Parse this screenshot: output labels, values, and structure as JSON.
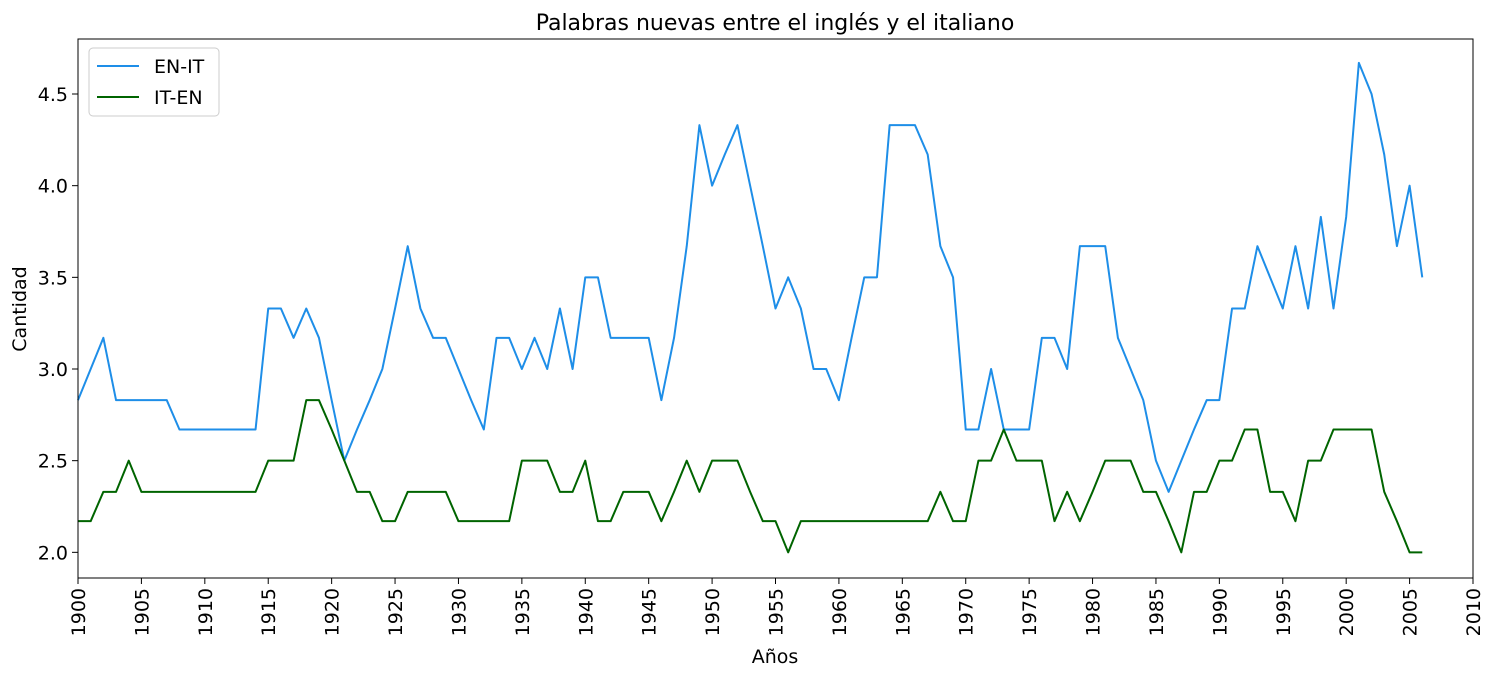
{
  "chart_data": {
    "type": "line",
    "title": "Palabras nuevas entre el inglés y el italiano",
    "xlabel": "Años",
    "ylabel": "Cantidad",
    "xlim": [
      1900,
      2010
    ],
    "ylim": [
      1.86,
      4.8
    ],
    "x_ticks": [
      1900,
      1905,
      1910,
      1915,
      1920,
      1925,
      1930,
      1935,
      1940,
      1945,
      1950,
      1955,
      1960,
      1965,
      1970,
      1975,
      1980,
      1985,
      1990,
      1995,
      2000,
      2005,
      2010
    ],
    "y_ticks": [
      2.0,
      2.5,
      3.0,
      3.5,
      4.0,
      4.5
    ],
    "y_tick_labels": [
      "2.0",
      "2.5",
      "3.0",
      "3.5",
      "4.0",
      "4.5"
    ],
    "grid": false,
    "legend_position": "top-left",
    "x": [
      1900,
      1901,
      1902,
      1903,
      1904,
      1905,
      1906,
      1907,
      1908,
      1909,
      1910,
      1911,
      1912,
      1913,
      1914,
      1915,
      1916,
      1917,
      1918,
      1919,
      1920,
      1921,
      1922,
      1923,
      1924,
      1925,
      1926,
      1927,
      1928,
      1929,
      1930,
      1931,
      1932,
      1933,
      1934,
      1935,
      1936,
      1937,
      1938,
      1939,
      1940,
      1941,
      1942,
      1943,
      1944,
      1945,
      1946,
      1947,
      1948,
      1949,
      1950,
      1951,
      1952,
      1953,
      1954,
      1955,
      1956,
      1957,
      1958,
      1959,
      1960,
      1961,
      1962,
      1963,
      1964,
      1965,
      1966,
      1967,
      1968,
      1969,
      1970,
      1971,
      1972,
      1973,
      1974,
      1975,
      1976,
      1977,
      1978,
      1979,
      1980,
      1981,
      1982,
      1983,
      1984,
      1985,
      1986,
      1987,
      1988,
      1989,
      1990,
      1991,
      1992,
      1993,
      1994,
      1995,
      1996,
      1997,
      1998,
      1999,
      2000,
      2001,
      2002,
      2003,
      2004,
      2005,
      2006
    ],
    "series": [
      {
        "name": "EN-IT",
        "color": "#1e8ee8",
        "values": [
          2.83,
          3.0,
          3.17,
          2.83,
          2.83,
          2.83,
          2.83,
          2.83,
          2.67,
          2.67,
          2.67,
          2.67,
          2.67,
          2.67,
          2.67,
          3.33,
          3.33,
          3.17,
          3.33,
          3.17,
          2.83,
          2.5,
          2.67,
          2.83,
          3.0,
          3.33,
          3.67,
          3.33,
          3.17,
          3.17,
          3.0,
          2.83,
          2.67,
          3.17,
          3.17,
          3.0,
          3.17,
          3.0,
          3.33,
          3.0,
          3.5,
          3.5,
          3.17,
          3.17,
          3.17,
          3.17,
          2.83,
          3.17,
          3.67,
          4.33,
          4.0,
          4.17,
          4.33,
          4.0,
          3.67,
          3.33,
          3.5,
          3.33,
          3.0,
          3.0,
          2.83,
          3.17,
          3.5,
          3.5,
          4.33,
          4.33,
          4.33,
          4.17,
          3.67,
          3.5,
          2.67,
          2.67,
          3.0,
          2.67,
          2.67,
          2.67,
          3.17,
          3.17,
          3.0,
          3.67,
          3.67,
          3.67,
          3.17,
          3.0,
          2.83,
          2.5,
          2.33,
          2.5,
          2.67,
          2.83,
          2.83,
          3.33,
          3.33,
          3.67,
          3.5,
          3.33,
          3.67,
          3.33,
          3.83,
          3.33,
          3.83,
          4.67,
          4.5,
          4.17,
          3.67,
          4.0,
          3.5
        ]
      },
      {
        "name": "IT-EN",
        "color": "#006400",
        "values": [
          2.17,
          2.17,
          2.33,
          2.33,
          2.5,
          2.33,
          2.33,
          2.33,
          2.33,
          2.33,
          2.33,
          2.33,
          2.33,
          2.33,
          2.33,
          2.5,
          2.5,
          2.5,
          2.83,
          2.83,
          2.67,
          2.5,
          2.33,
          2.33,
          2.17,
          2.17,
          2.33,
          2.33,
          2.33,
          2.33,
          2.17,
          2.17,
          2.17,
          2.17,
          2.17,
          2.5,
          2.5,
          2.5,
          2.33,
          2.33,
          2.5,
          2.17,
          2.17,
          2.33,
          2.33,
          2.33,
          2.17,
          2.33,
          2.5,
          2.33,
          2.5,
          2.5,
          2.5,
          2.33,
          2.17,
          2.17,
          2.0,
          2.17,
          2.17,
          2.17,
          2.17,
          2.17,
          2.17,
          2.17,
          2.17,
          2.17,
          2.17,
          2.17,
          2.33,
          2.17,
          2.17,
          2.5,
          2.5,
          2.67,
          2.5,
          2.5,
          2.5,
          2.17,
          2.33,
          2.17,
          2.33,
          2.5,
          2.5,
          2.5,
          2.33,
          2.33,
          2.17,
          2.0,
          2.33,
          2.33,
          2.5,
          2.5,
          2.67,
          2.67,
          2.33,
          2.33,
          2.17,
          2.5,
          2.5,
          2.67,
          2.67,
          2.67,
          2.67,
          2.33,
          2.17,
          2.0,
          2.0
        ]
      }
    ]
  }
}
